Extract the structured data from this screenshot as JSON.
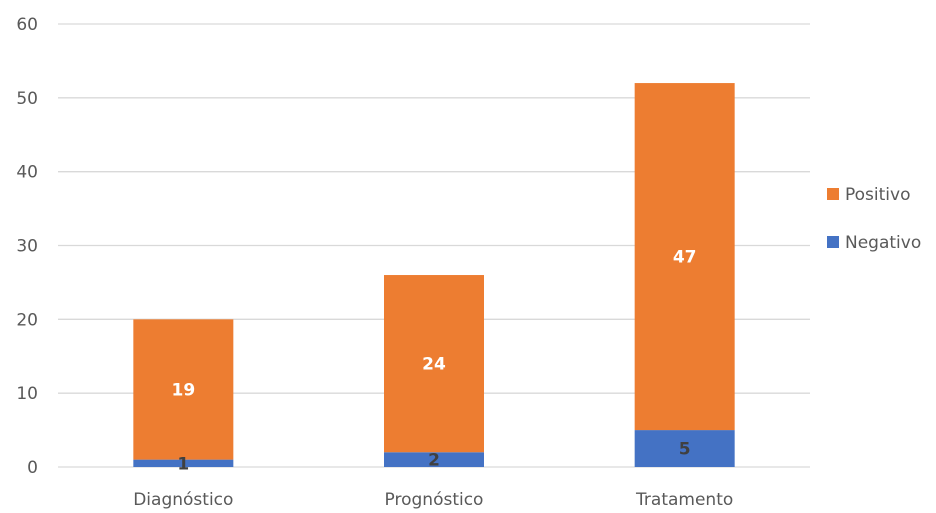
{
  "chart_data": {
    "type": "bar",
    "stacked": true,
    "categories": [
      "Diagnóstico",
      "Prognóstico",
      "Tratamento"
    ],
    "series": [
      {
        "name": "Negativo",
        "values": [
          1,
          2,
          5
        ],
        "color": "#4472C4",
        "label_color": "#404040"
      },
      {
        "name": "Positivo",
        "values": [
          19,
          24,
          47
        ],
        "color": "#ED7D31",
        "label_color": "#FFFFFF"
      }
    ],
    "ylim": [
      0,
      60
    ],
    "yticks": [
      0,
      10,
      20,
      30,
      40,
      50,
      60
    ],
    "grid": true,
    "legend_position": "right",
    "legend_order": [
      "Positivo",
      "Negativo"
    ],
    "gridline_color": "#D9D9D9"
  }
}
